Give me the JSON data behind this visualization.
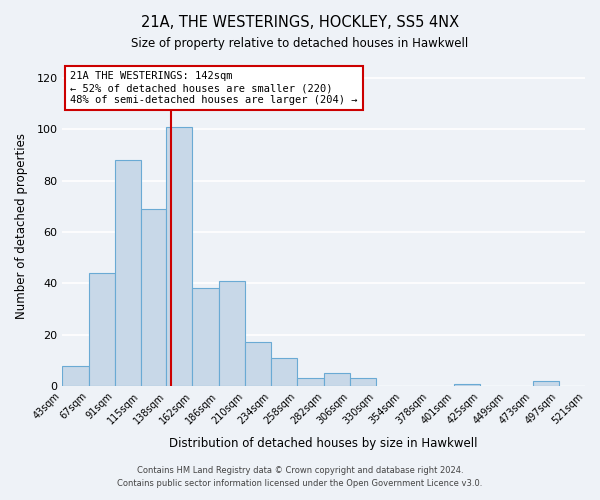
{
  "title": "21A, THE WESTERINGS, HOCKLEY, SS5 4NX",
  "subtitle": "Size of property relative to detached houses in Hawkwell",
  "xlabel": "Distribution of detached houses by size in Hawkwell",
  "ylabel": "Number of detached properties",
  "bar_color": "#c8d8e8",
  "bar_edge_color": "#6aaad4",
  "background_color": "#eef2f7",
  "grid_color": "white",
  "ref_line_x": 142,
  "ref_line_color": "#cc0000",
  "annotation_line1": "21A THE WESTERINGS: 142sqm",
  "annotation_line2": "← 52% of detached houses are smaller (220)",
  "annotation_line3": "48% of semi-detached houses are larger (204) →",
  "annotation_box_color": "white",
  "annotation_box_edge": "#cc0000",
  "bin_edges": [
    43,
    67,
    91,
    115,
    138,
    162,
    186,
    210,
    234,
    258,
    282,
    306,
    330,
    354,
    378,
    401,
    425,
    449,
    473,
    497,
    521
  ],
  "bar_heights": [
    8,
    44,
    88,
    69,
    101,
    38,
    41,
    17,
    11,
    3,
    5,
    3,
    0,
    0,
    0,
    1,
    0,
    0,
    2,
    0
  ],
  "ylim": [
    0,
    125
  ],
  "yticks": [
    0,
    20,
    40,
    60,
    80,
    100,
    120
  ],
  "footer_line1": "Contains HM Land Registry data © Crown copyright and database right 2024.",
  "footer_line2": "Contains public sector information licensed under the Open Government Licence v3.0.",
  "figsize": [
    6.0,
    5.0
  ],
  "dpi": 100
}
